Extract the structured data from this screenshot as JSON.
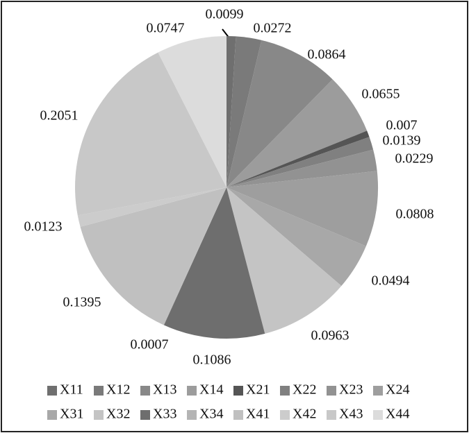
{
  "chart_data": {
    "type": "pie",
    "categories": [
      "X11",
      "X12",
      "X13",
      "X14",
      "X21",
      "X22",
      "X23",
      "X24",
      "X31",
      "X32",
      "X33",
      "X34",
      "X41",
      "X42",
      "X43",
      "X44"
    ],
    "values": [
      0.0099,
      0.0272,
      0.0864,
      0.0655,
      0.007,
      0.0139,
      0.0229,
      0.0808,
      0.0494,
      0.0963,
      0.1086,
      0.0007,
      0.1395,
      0.0123,
      0.2051,
      0.0747
    ],
    "colors": [
      "#6f6f6f",
      "#7a7a7a",
      "#888888",
      "#9c9c9c",
      "#555555",
      "#808080",
      "#929292",
      "#9e9e9e",
      "#a8a8a8",
      "#c4c4c4",
      "#6e6e6e",
      "#b4b4b4",
      "#c0c0c0",
      "#cccccc",
      "#c8c8c8",
      "#dcdcdc"
    ],
    "legend": "bottom"
  }
}
